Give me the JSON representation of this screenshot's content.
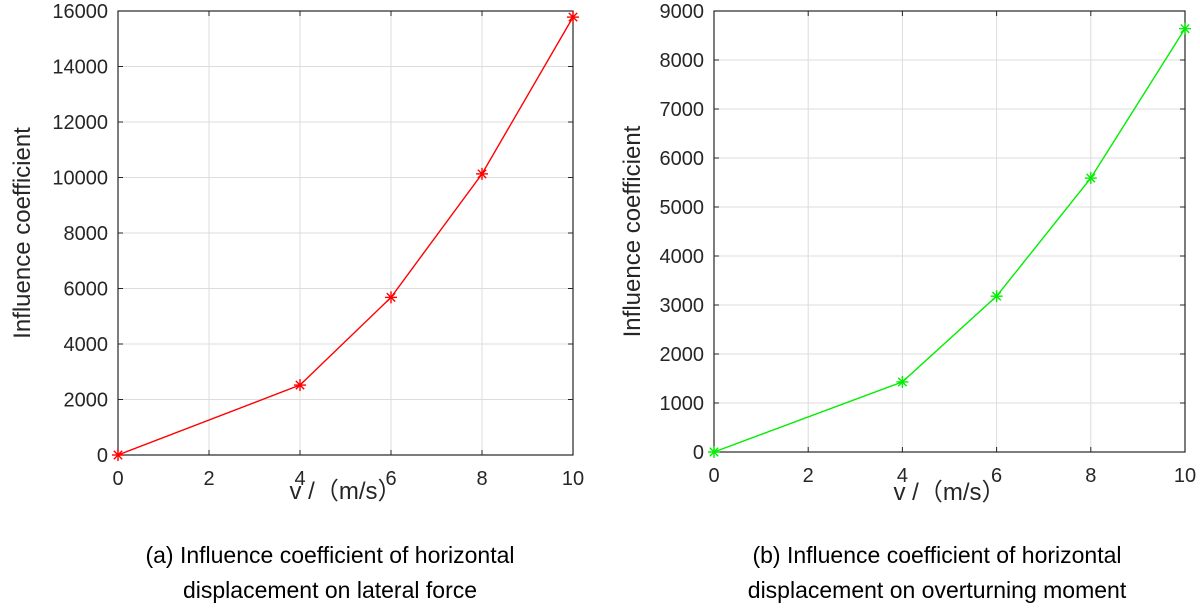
{
  "chart_data": [
    {
      "type": "line",
      "xlabel": "v /（m/s）",
      "ylabel": "Influence coefficient",
      "caption_lines": [
        "(a) Influence coefficient of horizontal",
        "displacement on lateral force"
      ],
      "xlim": [
        0,
        10
      ],
      "ylim": [
        0,
        16000
      ],
      "xticks": [
        0,
        2,
        4,
        6,
        8,
        10
      ],
      "yticks": [
        0,
        2000,
        4000,
        6000,
        8000,
        10000,
        12000,
        14000,
        16000
      ],
      "grid": true,
      "marker": "asterisk",
      "color": "#ff0000",
      "series": [
        {
          "x": [
            0,
            4,
            6,
            8,
            10
          ],
          "values": [
            0,
            2520,
            5680,
            10130,
            15780
          ]
        }
      ]
    },
    {
      "type": "line",
      "xlabel": "v /（m/s）",
      "ylabel": "Influence coefficient",
      "caption_lines": [
        "(b) Influence coefficient of horizontal",
        "displacement on overturning moment"
      ],
      "xlim": [
        0,
        10
      ],
      "ylim": [
        0,
        9000
      ],
      "xticks": [
        0,
        2,
        4,
        6,
        8,
        10
      ],
      "yticks": [
        0,
        1000,
        2000,
        3000,
        4000,
        5000,
        6000,
        7000,
        8000,
        9000
      ],
      "grid": true,
      "marker": "asterisk",
      "color": "#00ee00",
      "series": [
        {
          "x": [
            0,
            4,
            6,
            8,
            10
          ],
          "values": [
            0,
            1430,
            3180,
            5590,
            8640
          ]
        }
      ]
    }
  ]
}
